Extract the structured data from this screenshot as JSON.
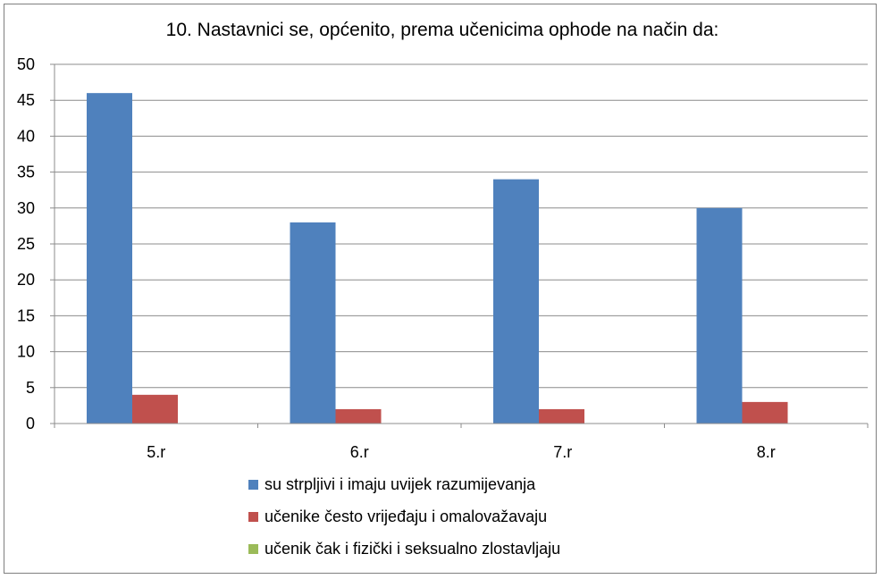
{
  "chart_data": {
    "type": "bar",
    "title": "10. Nastavnici se, općenito, prema učenicima ophode na način da:",
    "categories": [
      "5.r",
      "6.r",
      "7.r",
      "8.r"
    ],
    "series": [
      {
        "name": "su strpljivi i imaju uvijek razumijevanja",
        "color": "#4f81bd",
        "values": [
          46,
          28,
          34,
          30
        ]
      },
      {
        "name": "učenike često vrijeđaju i omalovažavaju",
        "color": "#c0504d",
        "values": [
          4,
          2,
          2,
          3
        ]
      },
      {
        "name": "učenik čak i fizički i seksualno zlostavljaju",
        "color": "#9bbb59",
        "values": [
          0,
          0,
          0,
          0
        ]
      }
    ],
    "y_ticks": [
      "0",
      "5",
      "10",
      "15",
      "20",
      "25",
      "30",
      "35",
      "40",
      "45",
      "50"
    ],
    "ylim": [
      0,
      50
    ],
    "grid": true,
    "legend_position": "bottom"
  }
}
